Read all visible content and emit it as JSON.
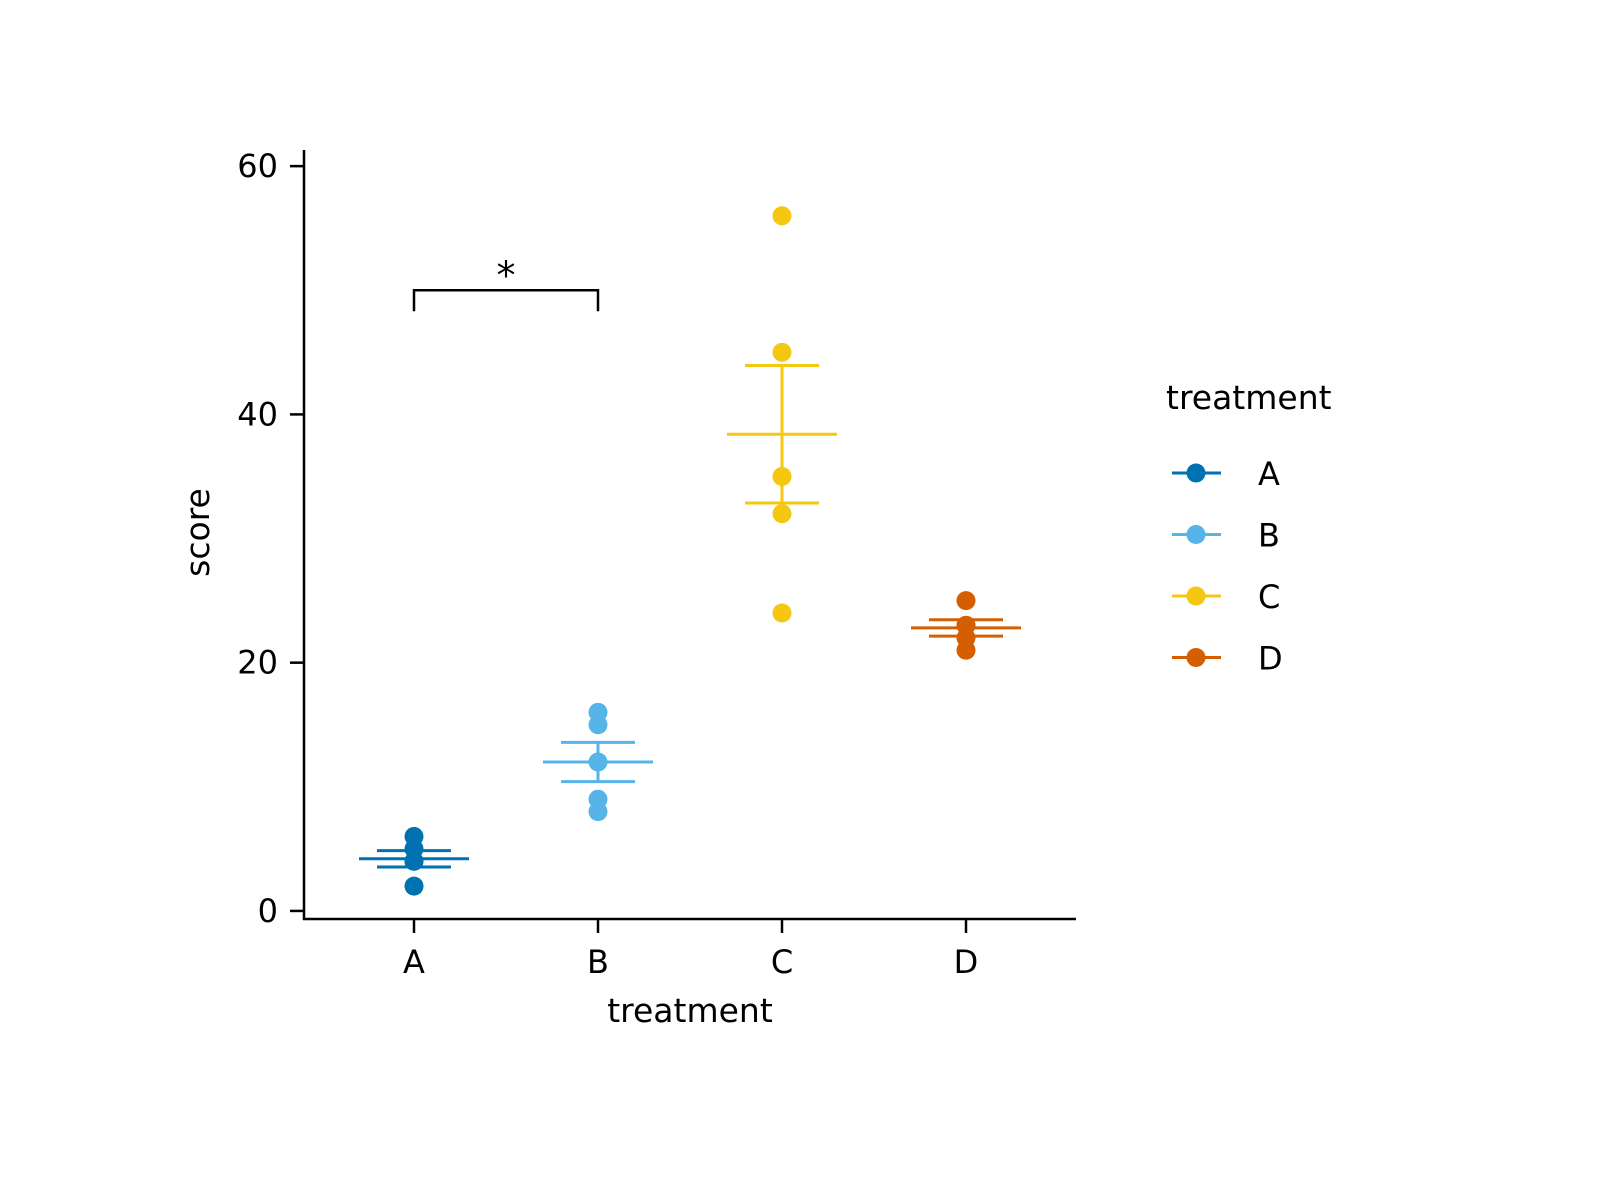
{
  "chart_data": {
    "type": "scatter",
    "title": "",
    "xlabel": "treatment",
    "ylabel": "score",
    "categories": [
      "A",
      "B",
      "C",
      "D"
    ],
    "ylim": [
      -0.65,
      61.3
    ],
    "yticks": [
      0,
      20,
      40,
      60
    ],
    "ytick_labels": [
      "0",
      "20",
      "40",
      "60"
    ],
    "grid": false,
    "series": [
      {
        "name": "A",
        "color": "#0072B2",
        "values": [
          6,
          5,
          4,
          4,
          2
        ],
        "mean": 4.2,
        "se": 0.66
      },
      {
        "name": "B",
        "color": "#56B4E9",
        "values": [
          16,
          15,
          12,
          9,
          8
        ],
        "mean": 12.0,
        "se": 1.58
      },
      {
        "name": "C",
        "color": "#F5C710",
        "values": [
          56,
          45,
          35,
          32,
          24
        ],
        "mean": 38.4,
        "se": 5.54
      },
      {
        "name": "D",
        "color": "#D55E00",
        "values": [
          25,
          23,
          23,
          22,
          21
        ],
        "mean": 22.8,
        "se": 0.66
      }
    ],
    "annotations": [
      {
        "type": "significance-bracket",
        "from": "A",
        "to": "B",
        "y": 50,
        "label": "*"
      }
    ],
    "legend": {
      "title": "treatment",
      "placement": "right",
      "entries": [
        "A",
        "B",
        "C",
        "D"
      ]
    }
  }
}
